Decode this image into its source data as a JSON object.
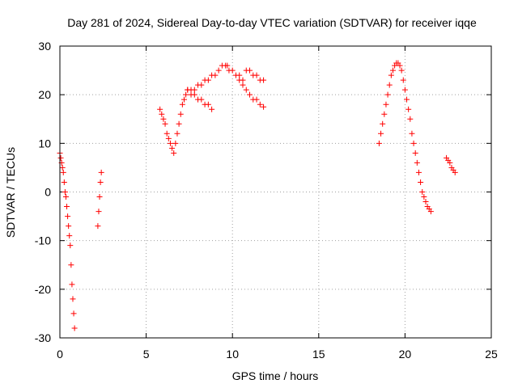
{
  "chart_data": {
    "type": "scatter",
    "title": "Day 281 of 2024, Sidereal Day-to-day VTEC variation (SDTVAR) for receiver iqqe",
    "xlabel": "GPS time / hours",
    "ylabel": "SDTVAR / TECUs",
    "xlim": [
      0,
      25
    ],
    "ylim": [
      -30,
      30
    ],
    "xticks": [
      0,
      5,
      10,
      15,
      20,
      25
    ],
    "yticks": [
      -30,
      -20,
      -10,
      0,
      10,
      20,
      30
    ],
    "grid": true,
    "marker": "plus",
    "color": "#ff0000",
    "series": [
      {
        "name": "segment-1",
        "x": [
          0.0,
          0.05,
          0.1,
          0.15,
          0.2,
          0.25,
          0.3,
          0.35,
          0.4,
          0.45,
          0.5,
          0.55,
          0.6,
          0.65,
          0.7,
          0.75,
          0.8,
          0.85
        ],
        "y": [
          8,
          7,
          6,
          5,
          4,
          2,
          0,
          -1,
          -3,
          -5,
          -7,
          -9,
          -11,
          -15,
          -19,
          -22,
          -25,
          -28
        ]
      },
      {
        "name": "segment-2",
        "x": [
          2.2,
          2.25,
          2.3,
          2.35,
          2.4
        ],
        "y": [
          -7,
          -4,
          -1,
          2,
          4
        ]
      },
      {
        "name": "segment-3",
        "x": [
          5.8,
          5.9,
          6.0,
          6.1,
          6.2,
          6.3,
          6.4,
          6.5,
          6.6,
          6.7,
          6.8,
          6.9,
          7.0,
          7.1,
          7.2,
          7.3,
          7.4,
          7.6,
          7.8,
          8.0,
          8.2,
          8.4,
          8.6,
          8.8,
          9.0,
          9.2,
          9.4,
          9.6,
          9.7,
          9.8,
          10.0,
          10.2,
          10.4,
          10.6
        ],
        "y": [
          17,
          16,
          15,
          14,
          12,
          11,
          10,
          9,
          8,
          10,
          12,
          14,
          16,
          18,
          19,
          20,
          21,
          21,
          21,
          22,
          22,
          23,
          23,
          24,
          24,
          25,
          26,
          26,
          26,
          25,
          25,
          24,
          24,
          23
        ]
      },
      {
        "name": "segment-4",
        "x": [
          7.4,
          7.6,
          7.8,
          8.0,
          8.2,
          8.4,
          8.6,
          8.8
        ],
        "y": [
          21,
          20,
          20,
          19,
          19,
          18,
          18,
          17
        ]
      },
      {
        "name": "segment-5",
        "x": [
          10.8,
          11.0,
          11.2,
          11.4,
          11.6,
          11.8
        ],
        "y": [
          25,
          25,
          24,
          24,
          23,
          23
        ]
      },
      {
        "name": "segment-6",
        "x": [
          10.4,
          10.6,
          10.8,
          11.0,
          11.2,
          11.4,
          11.6,
          11.8
        ],
        "y": [
          23,
          22,
          21,
          20,
          19,
          19,
          18,
          17.5
        ]
      },
      {
        "name": "segment-7",
        "x": [
          18.5,
          18.6,
          18.7,
          18.8,
          18.9,
          19.0,
          19.1,
          19.2,
          19.3,
          19.4,
          19.5,
          19.6,
          19.7,
          19.8,
          19.9,
          20.0,
          20.1,
          20.2,
          20.3,
          20.4,
          20.5,
          20.6,
          20.7,
          20.8,
          20.9,
          21.0,
          21.1,
          21.2,
          21.3,
          21.4,
          21.5
        ],
        "y": [
          10,
          12,
          14,
          16,
          18,
          20,
          22,
          24,
          25,
          26,
          26.5,
          26.5,
          26,
          25,
          23,
          21,
          19,
          17,
          15,
          12,
          10,
          8,
          6,
          4,
          2,
          0,
          -1,
          -2,
          -3,
          -3.5,
          -4
        ]
      },
      {
        "name": "segment-8",
        "x": [
          22.4,
          22.5,
          22.6,
          22.7,
          22.8,
          22.9
        ],
        "y": [
          7,
          6.5,
          6,
          5,
          4.5,
          4
        ]
      }
    ]
  }
}
